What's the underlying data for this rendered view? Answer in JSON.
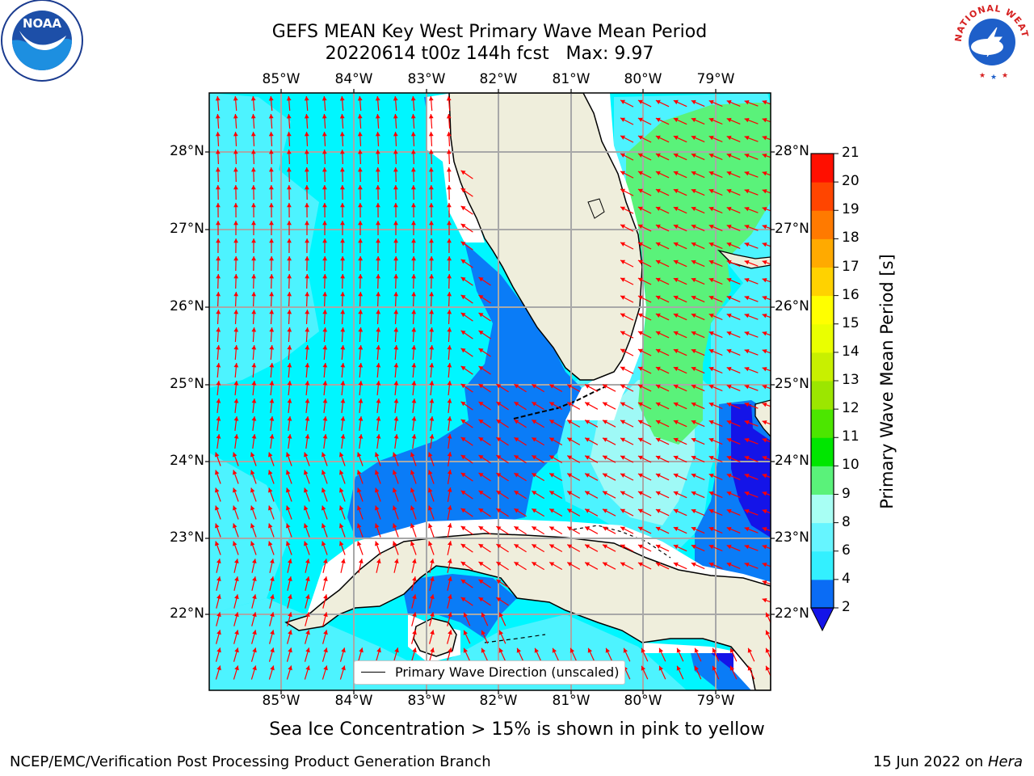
{
  "title": {
    "line1": "GEFS MEAN Key West Primary Wave Mean Period",
    "line2": "20220614 t00z 144h fcst   Max: 9.97"
  },
  "axes": {
    "lon_labels": [
      "85°W",
      "84°W",
      "83°W",
      "82°W",
      "81°W",
      "80°W",
      "79°W"
    ],
    "lat_labels": [
      "28°N",
      "27°N",
      "26°N",
      "25°N",
      "24°N",
      "23°N",
      "22°N"
    ]
  },
  "legend": {
    "label": "Primary Wave Direction (unscaled)"
  },
  "colorbar": {
    "title": "Primary Wave Mean Period [s]",
    "ticks": [
      "2",
      "4",
      "6",
      "8",
      "9",
      "10",
      "11",
      "12",
      "13",
      "14",
      "15",
      "16",
      "17",
      "18",
      "19",
      "20",
      "21"
    ],
    "colors": [
      "#0a6cf5",
      "#00e5ff",
      "#33f0ff",
      "#66f5ff",
      "#a8fff4",
      "#5af27a",
      "#00e600",
      "#4ce600",
      "#9ce600",
      "#c8f000",
      "#eaff00",
      "#ffff00",
      "#ffd200",
      "#ffaa00",
      "#ff7a00",
      "#ff4500",
      "#ff0f00"
    ]
  },
  "map_colors": {
    "land": "#efeedc",
    "sea_light": "#00f6ff",
    "sea_cyan": "#4df3ff",
    "sea_pale": "#9ff9f6",
    "sea_mid": "#0a7cf7",
    "sea_deep": "#1414e8",
    "period_green": "#5af27a",
    "arrow": "#ff0000"
  },
  "logos": {
    "left": "NOAA",
    "right_ring": "NATIONAL WEATHER SERVICE"
  },
  "note": "Sea Ice Concentration > 15% is shown in pink to yellow",
  "footer": {
    "left": "NCEP/EMC/Verification Post Processing Product Generation Branch",
    "right_prefix": "15 Jun 2022 on ",
    "right_host": "Hera"
  }
}
